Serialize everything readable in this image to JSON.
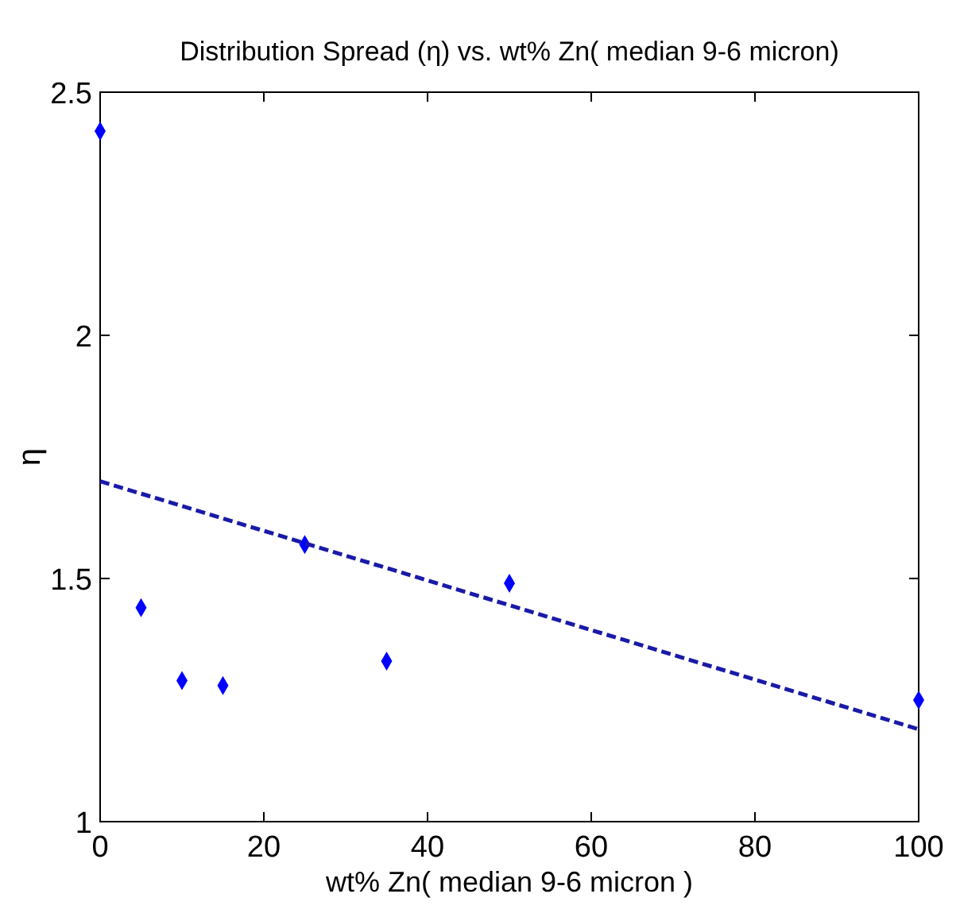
{
  "chart_data": {
    "type": "scatter",
    "title": "Distribution Spread (η) vs. wt% Zn( median 9-6 micron)",
    "xlabel": "wt% Zn( median 9-6 micron )",
    "ylabel": "η",
    "xlim": [
      0,
      100
    ],
    "xticks": [
      0,
      20,
      40,
      60,
      80,
      100
    ],
    "ylim": [
      1,
      2.5
    ],
    "yticks": [
      1,
      1.5,
      2,
      2.5
    ],
    "grid": false,
    "series": [
      {
        "color": "#0000ff",
        "marker": "diamond",
        "x": [
          0,
          5,
          10,
          15,
          25,
          35,
          50,
          100
        ],
        "values": [
          2.42,
          1.44,
          1.29,
          1.28,
          1.57,
          1.33,
          1.49,
          1.25
        ]
      },
      {
        "type": "line",
        "color": "#1a1aa8",
        "marker": "none",
        "line_style": "dashed",
        "x": [
          0,
          100
        ],
        "values": [
          1.7,
          1.19
        ]
      }
    ]
  }
}
